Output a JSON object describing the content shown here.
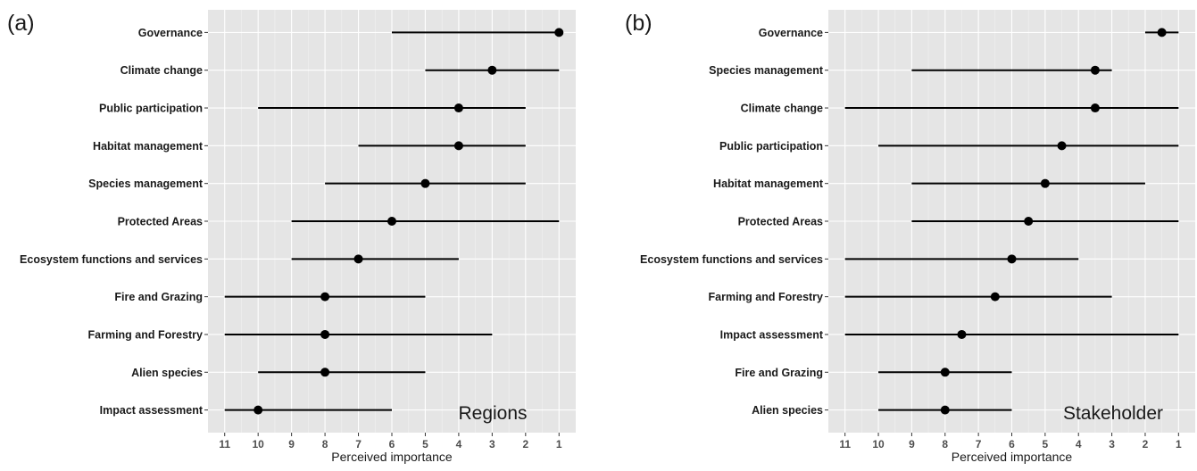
{
  "chart_data": [
    {
      "type": "dot-range",
      "panel_label": "(a)",
      "annotation": "Regions",
      "xlabel": "Perceived importance",
      "xlim": [
        11,
        1
      ],
      "x_reversed": true,
      "x_ticks": [
        "11",
        "10",
        "9",
        "8",
        "7",
        "6",
        "5",
        "4",
        "3",
        "2",
        "1"
      ],
      "grid": true,
      "categories": [
        "Governance",
        "Climate change",
        "Public participation",
        "Habitat management",
        "Species management",
        "Protected Areas",
        "Ecosystem functions and services",
        "Fire and Grazing",
        "Farming and Forestry",
        "Alien species",
        "Impact assessment"
      ],
      "point": [
        1,
        3,
        4,
        4,
        5,
        6,
        7,
        8,
        8,
        8,
        10
      ],
      "range_low": [
        6,
        5,
        10,
        7,
        8,
        9,
        9,
        11,
        11,
        10,
        11
      ],
      "range_high": [
        1,
        1,
        2,
        2,
        2,
        1,
        4,
        5,
        3,
        5,
        6
      ]
    },
    {
      "type": "dot-range",
      "panel_label": "(b)",
      "annotation": "Stakeholder",
      "xlabel": "Perceived importance",
      "xlim": [
        11,
        1
      ],
      "x_reversed": true,
      "x_ticks": [
        "11",
        "10",
        "9",
        "8",
        "7",
        "6",
        "5",
        "4",
        "3",
        "2",
        "1"
      ],
      "grid": true,
      "categories": [
        "Governance",
        "Species management",
        "Climate change",
        "Public participation",
        "Habitat management",
        "Protected Areas",
        "Ecosystem functions and services",
        "Farming and Forestry",
        "Impact assessment",
        "Fire and Grazing",
        "Alien species"
      ],
      "point": [
        1.5,
        3.5,
        3.5,
        4.5,
        5,
        5.5,
        6,
        6.5,
        7.5,
        8,
        8
      ],
      "range_low": [
        2,
        9,
        11,
        10,
        9,
        9,
        11,
        11,
        11,
        10,
        10
      ],
      "range_high": [
        1,
        3,
        1,
        1,
        2,
        1,
        4,
        3,
        1,
        6,
        6
      ]
    }
  ],
  "colors": {
    "panel_bg": "#e5e5e5",
    "grid_major": "#ffffff",
    "grid_minor": "#f2f2f2",
    "marks": "#000000",
    "text": "#1a1a1a",
    "tick_text": "#4d4d4d"
  }
}
